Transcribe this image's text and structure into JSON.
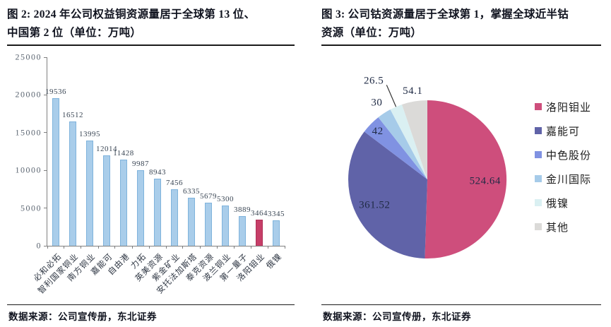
{
  "fig2": {
    "title_l1": "图 2: 2024 年公司权益铜资源量居于全球第 13 位、",
    "title_l2": "中国第 2 位（单位：万吨）",
    "source": "数据来源：公司宣传册，东北证券"
  },
  "fig3": {
    "title_l1": "图 3: 公司钴资源量居于全球第 1，掌握全球近半钴",
    "title_l2": "资源（单位：万吨）",
    "source": "数据来源：公司宣传册，东北证券"
  },
  "chart_data": [
    {
      "id": "copper-equity-resources-bar",
      "type": "bar",
      "title": "图 2: 2024 年公司权益铜资源量居于全球第 13 位、中国第 2 位（单位：万吨）",
      "categories": [
        "必和必拓",
        "智利国家铜业",
        "南方铜业",
        "嘉能可",
        "自由港",
        "力拓",
        "英美资源",
        "紫金矿业",
        "安托法加斯塔",
        "泰克资源",
        "波兰铜业",
        "第一量子",
        "洛阳钼业",
        "俄镍"
      ],
      "values": [
        19536,
        16512,
        13995,
        12014,
        11428,
        9987,
        8943,
        7456,
        6335,
        5679,
        5300,
        3889,
        3464,
        3345
      ],
      "unit": "万吨",
      "ylim": [
        0,
        25000
      ],
      "yticks": [
        0,
        5000,
        10000,
        15000,
        20000,
        25000
      ],
      "grid": false,
      "bar_color": "#a9cdea",
      "bar_border": "#7fb3dc",
      "highlight_index": 12,
      "highlight_color": "#c63e68",
      "highlight_border": "#af2f57"
    },
    {
      "id": "cobalt-resources-pie",
      "type": "pie",
      "title": "图 3: 公司钴资源量居于全球第 1，掌握全球近半钴资源（单位：万吨）",
      "labels": [
        "洛阳钼业",
        "嘉能可",
        "中色股份",
        "金川国际",
        "俄镍",
        "其他"
      ],
      "values": [
        524.64,
        361.52,
        42,
        30,
        26.5,
        54.1
      ],
      "value_labels": [
        "524.64",
        "361.52",
        "42",
        "30",
        "26.5",
        "54.1"
      ],
      "colors": [
        "#ce4e7c",
        "#6063a8",
        "#8092e2",
        "#a6cbe9",
        "#daf0f2",
        "#dbdad8"
      ],
      "start_angle": "top",
      "direction": "clockwise",
      "legend_position": "right"
    }
  ]
}
